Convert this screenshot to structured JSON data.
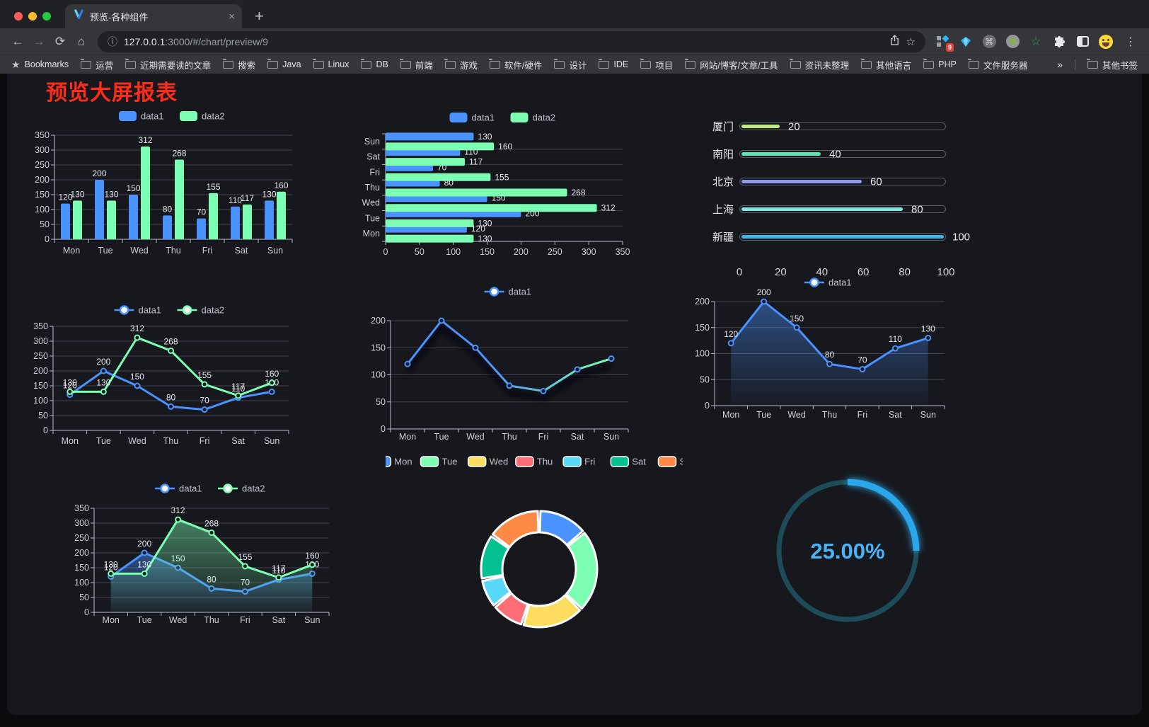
{
  "browser": {
    "tab_title": "预览-各种组件",
    "url_host": "127.0.0.1",
    "url_rest": ":3000/#/chart/preview/9",
    "bookmarks_label": "Bookmarks",
    "bookmarks": [
      "运营",
      "近期需要读的文章",
      "搜索",
      "Java",
      "Linux",
      "DB",
      "前端",
      "游戏",
      "软件/硬件",
      "设计",
      "IDE",
      "项目",
      "网站/博客/文章/工具",
      "资讯未整理",
      "其他语言",
      "PHP",
      "文件服务器"
    ],
    "bookmarks_overflow": "»",
    "other_bookmarks": "其他书签",
    "extension_badge": "9"
  },
  "page": {
    "title": "预览大屏报表"
  },
  "chart_data": [
    {
      "id": "grouped-bar",
      "type": "bar",
      "categories": [
        "Mon",
        "Tue",
        "Wed",
        "Thu",
        "Fri",
        "Sat",
        "Sun"
      ],
      "series": [
        {
          "name": "data1",
          "color": "#4992ff",
          "values": [
            120,
            200,
            150,
            80,
            70,
            110,
            130
          ]
        },
        {
          "name": "data2",
          "color": "#7cffb2",
          "values": [
            130,
            130,
            312,
            268,
            155,
            117,
            160
          ]
        }
      ],
      "ylim": [
        0,
        350
      ],
      "ytick": 50,
      "legend_position": "top",
      "grid": true
    },
    {
      "id": "horizontal-bar",
      "type": "hbar",
      "categories": [
        "Mon",
        "Tue",
        "Wed",
        "Thu",
        "Fri",
        "Sat",
        "Sun"
      ],
      "series": [
        {
          "name": "data1",
          "color": "#4992ff",
          "values": [
            120,
            200,
            150,
            80,
            70,
            110,
            130
          ]
        },
        {
          "name": "data2",
          "color": "#7cffb2",
          "values": [
            130,
            130,
            312,
            268,
            155,
            117,
            160
          ]
        }
      ],
      "xlim": [
        0,
        350
      ],
      "xtick": 50,
      "legend_position": "top",
      "grid": true
    },
    {
      "id": "progress-bars",
      "type": "progress",
      "max": 100,
      "xticks": [
        0,
        20,
        40,
        60,
        80,
        100
      ],
      "items": [
        {
          "label": "厦门",
          "value": 20,
          "color": "#c0e887"
        },
        {
          "label": "南阳",
          "value": 40,
          "color": "#62e6b5"
        },
        {
          "label": "北京",
          "value": 60,
          "color": "#8e9af0"
        },
        {
          "label": "上海",
          "value": 80,
          "color": "#84e7e3"
        },
        {
          "label": "新疆",
          "value": 100,
          "color": "#41b4e4"
        }
      ]
    },
    {
      "id": "line-two-series",
      "type": "line",
      "variant": "plain",
      "labels": true,
      "categories": [
        "Mon",
        "Tue",
        "Wed",
        "Thu",
        "Fri",
        "Sat",
        "Sun"
      ],
      "series": [
        {
          "name": "data1",
          "color": "#4992ff",
          "values": [
            120,
            200,
            150,
            80,
            70,
            110,
            130
          ]
        },
        {
          "name": "data2",
          "color": "#7cffb2",
          "values": [
            130,
            130,
            312,
            268,
            155,
            117,
            160
          ]
        }
      ],
      "ylim": [
        0,
        350
      ],
      "ytick": 50,
      "legend_position": "top",
      "grid": true
    },
    {
      "id": "line-gradient-shadow",
      "type": "line",
      "variant": "gradient",
      "labels": false,
      "categories": [
        "Mon",
        "Tue",
        "Wed",
        "Thu",
        "Fri",
        "Sat",
        "Sun"
      ],
      "series": [
        {
          "name": "data1",
          "color": "#4992ff",
          "values": [
            120,
            200,
            150,
            80,
            70,
            110,
            130
          ]
        }
      ],
      "gradient": [
        "#4992ff",
        "#7cffb2"
      ],
      "ylim": [
        0,
        200
      ],
      "ytick": 50,
      "legend_position": "top",
      "grid": true
    },
    {
      "id": "area-single",
      "type": "line",
      "variant": "area",
      "labels": true,
      "categories": [
        "Mon",
        "Tue",
        "Wed",
        "Thu",
        "Fri",
        "Sat",
        "Sun"
      ],
      "series": [
        {
          "name": "data1",
          "color": "#4992ff",
          "values": [
            120,
            200,
            150,
            80,
            70,
            110,
            130
          ]
        }
      ],
      "ylim": [
        0,
        200
      ],
      "ytick": 50,
      "legend_position": "top",
      "grid": true
    },
    {
      "id": "area-two-series",
      "type": "line",
      "variant": "area",
      "labels": true,
      "categories": [
        "Mon",
        "Tue",
        "Wed",
        "Thu",
        "Fri",
        "Sat",
        "Sun"
      ],
      "series": [
        {
          "name": "data1",
          "color": "#4992ff",
          "values": [
            120,
            200,
            150,
            80,
            70,
            110,
            130
          ]
        },
        {
          "name": "data2",
          "color": "#7cffb2",
          "values": [
            130,
            130,
            312,
            268,
            155,
            117,
            160
          ]
        }
      ],
      "ylim": [
        0,
        350
      ],
      "ytick": 50,
      "legend_position": "top",
      "grid": true
    },
    {
      "id": "donut",
      "type": "pie",
      "legend_position": "top",
      "slices": [
        {
          "label": "Mon",
          "value": 120,
          "color": "#4992ff"
        },
        {
          "label": "Tue",
          "value": 200,
          "color": "#7cffb2"
        },
        {
          "label": "Wed",
          "value": 150,
          "color": "#fddd60"
        },
        {
          "label": "Thu",
          "value": 80,
          "color": "#ff6e76"
        },
        {
          "label": "Fri",
          "value": 70,
          "color": "#58d9f9"
        },
        {
          "label": "Sat",
          "value": 110,
          "color": "#05c091"
        },
        {
          "label": "Sun",
          "value": 130,
          "color": "#ff8a45"
        }
      ]
    },
    {
      "id": "gauge",
      "type": "gauge",
      "value_label": "25.00%",
      "percent": 25,
      "track_color": "#1d4b58",
      "bar_color": "#2aa7ea",
      "text_color": "#4ab2f5"
    }
  ]
}
